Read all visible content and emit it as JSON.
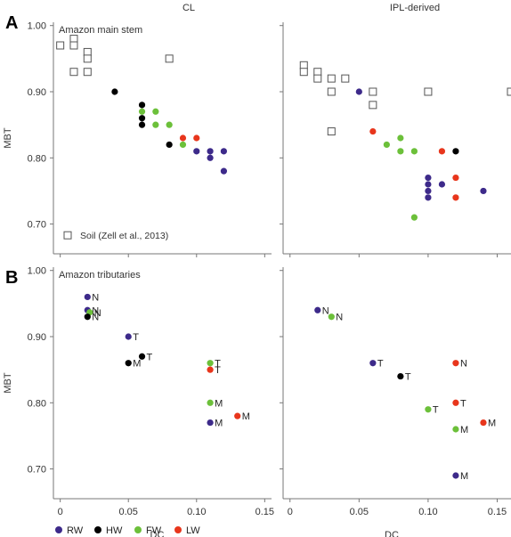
{
  "panel_letters": [
    "A",
    "B"
  ],
  "column_titles": [
    "CL",
    "IPL-derived"
  ],
  "legend": [
    {
      "label": "RW",
      "color": "#3d2a8a"
    },
    {
      "label": "HW",
      "color": "#000000"
    },
    {
      "label": "FW",
      "color": "#6cc03a"
    },
    {
      "label": "LW",
      "color": "#e8361c"
    }
  ],
  "chart_data": [
    {
      "id": "A-CL",
      "type": "scatter",
      "row": "A",
      "column_title": "CL",
      "subtitle": "Amazon main stem",
      "ylabel": "MBT",
      "xlabel": "",
      "xlim": [
        -0.005,
        0.155
      ],
      "ylim": [
        0.655,
        1.005
      ],
      "xticks": [],
      "yticks": [
        "0.70",
        "0.80",
        "0.90",
        "1.00"
      ],
      "soil_label": "Soil (Zell et al., 2013)",
      "soil": [
        [
          0.0,
          0.97
        ],
        [
          0.01,
          0.98
        ],
        [
          0.01,
          0.97
        ],
        [
          0.02,
          0.96
        ],
        [
          0.02,
          0.95
        ],
        [
          0.01,
          0.93
        ],
        [
          0.02,
          0.93
        ],
        [
          0.08,
          0.95
        ]
      ],
      "points": [
        {
          "x": 0.04,
          "y": 0.9,
          "g": "HW"
        },
        {
          "x": 0.06,
          "y": 0.88,
          "g": "HW"
        },
        {
          "x": 0.06,
          "y": 0.87,
          "g": "FW"
        },
        {
          "x": 0.07,
          "y": 0.87,
          "g": "FW"
        },
        {
          "x": 0.06,
          "y": 0.86,
          "g": "HW"
        },
        {
          "x": 0.06,
          "y": 0.85,
          "g": "HW"
        },
        {
          "x": 0.07,
          "y": 0.85,
          "g": "FW"
        },
        {
          "x": 0.08,
          "y": 0.85,
          "g": "FW"
        },
        {
          "x": 0.09,
          "y": 0.83,
          "g": "LW"
        },
        {
          "x": 0.1,
          "y": 0.83,
          "g": "LW"
        },
        {
          "x": 0.08,
          "y": 0.82,
          "g": "HW"
        },
        {
          "x": 0.09,
          "y": 0.82,
          "g": "FW"
        },
        {
          "x": 0.1,
          "y": 0.81,
          "g": "RW"
        },
        {
          "x": 0.11,
          "y": 0.81,
          "g": "RW"
        },
        {
          "x": 0.12,
          "y": 0.81,
          "g": "RW"
        },
        {
          "x": 0.11,
          "y": 0.8,
          "g": "RW"
        },
        {
          "x": 0.12,
          "y": 0.78,
          "g": "RW"
        }
      ]
    },
    {
      "id": "A-IPL",
      "type": "scatter",
      "row": "A",
      "column_title": "IPL-derived",
      "subtitle": "",
      "ylabel": "",
      "xlabel": "",
      "xlim": [
        -0.005,
        0.16
      ],
      "ylim": [
        0.655,
        1.005
      ],
      "xticks": [],
      "yticks": [],
      "soil_label": "",
      "soil": [
        [
          0.01,
          0.94
        ],
        [
          0.01,
          0.93
        ],
        [
          0.02,
          0.93
        ],
        [
          0.02,
          0.92
        ],
        [
          0.03,
          0.92
        ],
        [
          0.04,
          0.92
        ],
        [
          0.03,
          0.9
        ],
        [
          0.06,
          0.9
        ],
        [
          0.1,
          0.9
        ],
        [
          0.16,
          0.9
        ],
        [
          0.06,
          0.88
        ],
        [
          0.03,
          0.84
        ]
      ],
      "points": [
        {
          "x": 0.05,
          "y": 0.9,
          "g": "RW"
        },
        {
          "x": 0.06,
          "y": 0.84,
          "g": "LW"
        },
        {
          "x": 0.08,
          "y": 0.83,
          "g": "FW"
        },
        {
          "x": 0.07,
          "y": 0.82,
          "g": "FW"
        },
        {
          "x": 0.08,
          "y": 0.81,
          "g": "FW"
        },
        {
          "x": 0.09,
          "y": 0.81,
          "g": "FW"
        },
        {
          "x": 0.11,
          "y": 0.81,
          "g": "LW"
        },
        {
          "x": 0.12,
          "y": 0.81,
          "g": "HW"
        },
        {
          "x": 0.12,
          "y": 0.77,
          "g": "LW"
        },
        {
          "x": 0.1,
          "y": 0.77,
          "g": "RW"
        },
        {
          "x": 0.1,
          "y": 0.76,
          "g": "RW"
        },
        {
          "x": 0.11,
          "y": 0.76,
          "g": "RW"
        },
        {
          "x": 0.1,
          "y": 0.75,
          "g": "RW"
        },
        {
          "x": 0.14,
          "y": 0.75,
          "g": "RW"
        },
        {
          "x": 0.1,
          "y": 0.74,
          "g": "RW"
        },
        {
          "x": 0.12,
          "y": 0.74,
          "g": "LW"
        },
        {
          "x": 0.09,
          "y": 0.71,
          "g": "FW"
        }
      ]
    },
    {
      "id": "B-CL",
      "type": "scatter",
      "row": "B",
      "column_title": "CL",
      "subtitle": "Amazon tributaries",
      "ylabel": "MBT",
      "xlabel": "DC",
      "xlim": [
        -0.005,
        0.155
      ],
      "ylim": [
        0.655,
        1.005
      ],
      "xticks": [
        "0",
        "0.05",
        "0.10",
        "0.15"
      ],
      "yticks": [
        "0.70",
        "0.80",
        "0.90",
        "1.00"
      ],
      "soil_label": "",
      "soil": [],
      "points": [
        {
          "x": 0.02,
          "y": 0.96,
          "g": "RW",
          "label": "N"
        },
        {
          "x": 0.02,
          "y": 0.94,
          "g": "RW",
          "label": "N"
        },
        {
          "x": 0.02,
          "y": 0.94,
          "g": "FW",
          "label": "N"
        },
        {
          "x": 0.02,
          "y": 0.93,
          "g": "HW",
          "label": "N"
        },
        {
          "x": 0.05,
          "y": 0.9,
          "g": "RW",
          "label": "T"
        },
        {
          "x": 0.06,
          "y": 0.87,
          "g": "HW",
          "label": "T"
        },
        {
          "x": 0.05,
          "y": 0.86,
          "g": "HW",
          "label": "M"
        },
        {
          "x": 0.11,
          "y": 0.86,
          "g": "FW",
          "label": "T"
        },
        {
          "x": 0.11,
          "y": 0.85,
          "g": "LW",
          "label": "T"
        },
        {
          "x": 0.11,
          "y": 0.8,
          "g": "FW",
          "label": "M"
        },
        {
          "x": 0.13,
          "y": 0.78,
          "g": "LW",
          "label": "M"
        },
        {
          "x": 0.11,
          "y": 0.77,
          "g": "RW",
          "label": "M"
        }
      ]
    },
    {
      "id": "B-IPL",
      "type": "scatter",
      "row": "B",
      "column_title": "IPL-derived",
      "subtitle": "",
      "ylabel": "",
      "xlabel": "DC",
      "xlim": [
        -0.005,
        0.16
      ],
      "ylim": [
        0.655,
        1.005
      ],
      "xticks": [
        "0",
        "0.05",
        "0.10",
        "0.15"
      ],
      "yticks": [],
      "soil_label": "",
      "soil": [],
      "points": [
        {
          "x": 0.02,
          "y": 0.94,
          "g": "RW",
          "label": "N"
        },
        {
          "x": 0.03,
          "y": 0.93,
          "g": "FW",
          "label": "N"
        },
        {
          "x": 0.06,
          "y": 0.86,
          "g": "RW",
          "label": "T"
        },
        {
          "x": 0.08,
          "y": 0.84,
          "g": "HW",
          "label": "T"
        },
        {
          "x": 0.12,
          "y": 0.86,
          "g": "LW",
          "label": "N"
        },
        {
          "x": 0.12,
          "y": 0.8,
          "g": "LW",
          "label": "T"
        },
        {
          "x": 0.1,
          "y": 0.79,
          "g": "FW",
          "label": "T"
        },
        {
          "x": 0.12,
          "y": 0.76,
          "g": "FW",
          "label": "M"
        },
        {
          "x": 0.14,
          "y": 0.77,
          "g": "LW",
          "label": "M"
        },
        {
          "x": 0.12,
          "y": 0.69,
          "g": "RW",
          "label": "M"
        }
      ]
    }
  ]
}
